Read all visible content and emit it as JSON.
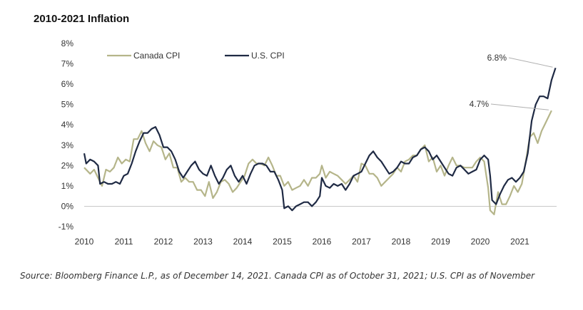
{
  "title": "2010-2021 Inflation",
  "source": "Source: Bloomberg Finance L.P., as of December 14, 2021. Canada CPI as of October 31, 2021; U.S. CPI as of November",
  "chart_data": {
    "type": "line",
    "title": "2010-2021 Inflation",
    "xlabel": "",
    "ylabel": "",
    "xlim": [
      2010,
      2022
    ],
    "ylim": [
      -1,
      8
    ],
    "y_ticks": [
      "-1%",
      "0%",
      "1%",
      "2%",
      "3%",
      "4%",
      "5%",
      "6%",
      "7%",
      "8%"
    ],
    "x_ticks": [
      "2010",
      "2011",
      "2012",
      "2013",
      "2014",
      "2015",
      "2016",
      "2017",
      "2018",
      "2019",
      "2020",
      "2021"
    ],
    "legend": "top-left",
    "grid": false,
    "annotations": [
      {
        "series": "U.S. CPI",
        "text": "6.8%"
      },
      {
        "series": "Canada CPI",
        "text": "4.7%"
      }
    ],
    "series": [
      {
        "name": "Canada CPI",
        "color": "#b5b58a",
        "points": [
          [
            2010.0,
            1.9
          ],
          [
            2010.15,
            1.6
          ],
          [
            2010.25,
            1.8
          ],
          [
            2010.35,
            1.4
          ],
          [
            2010.45,
            1.0
          ],
          [
            2010.55,
            1.8
          ],
          [
            2010.65,
            1.7
          ],
          [
            2010.75,
            1.9
          ],
          [
            2010.85,
            2.4
          ],
          [
            2010.95,
            2.1
          ],
          [
            2011.05,
            2.3
          ],
          [
            2011.15,
            2.2
          ],
          [
            2011.25,
            3.3
          ],
          [
            2011.35,
            3.3
          ],
          [
            2011.45,
            3.7
          ],
          [
            2011.55,
            3.1
          ],
          [
            2011.65,
            2.7
          ],
          [
            2011.75,
            3.2
          ],
          [
            2011.85,
            3.0
          ],
          [
            2011.95,
            2.9
          ],
          [
            2012.05,
            2.3
          ],
          [
            2012.15,
            2.6
          ],
          [
            2012.25,
            1.9
          ],
          [
            2012.35,
            1.9
          ],
          [
            2012.45,
            1.2
          ],
          [
            2012.55,
            1.4
          ],
          [
            2012.65,
            1.2
          ],
          [
            2012.75,
            1.2
          ],
          [
            2012.85,
            0.8
          ],
          [
            2012.95,
            0.8
          ],
          [
            2013.05,
            0.5
          ],
          [
            2013.15,
            1.2
          ],
          [
            2013.25,
            0.4
          ],
          [
            2013.35,
            0.7
          ],
          [
            2013.45,
            1.2
          ],
          [
            2013.55,
            1.3
          ],
          [
            2013.65,
            1.1
          ],
          [
            2013.75,
            0.7
          ],
          [
            2013.85,
            0.9
          ],
          [
            2013.95,
            1.2
          ],
          [
            2014.05,
            1.5
          ],
          [
            2014.15,
            2.1
          ],
          [
            2014.25,
            2.3
          ],
          [
            2014.35,
            2.1
          ],
          [
            2014.45,
            2.1
          ],
          [
            2014.55,
            2.0
          ],
          [
            2014.65,
            2.4
          ],
          [
            2014.75,
            2.0
          ],
          [
            2014.85,
            1.5
          ],
          [
            2014.95,
            1.5
          ],
          [
            2015.05,
            1.0
          ],
          [
            2015.15,
            1.2
          ],
          [
            2015.25,
            0.8
          ],
          [
            2015.35,
            0.9
          ],
          [
            2015.45,
            1.0
          ],
          [
            2015.55,
            1.3
          ],
          [
            2015.65,
            1.0
          ],
          [
            2015.75,
            1.4
          ],
          [
            2015.85,
            1.4
          ],
          [
            2015.95,
            1.6
          ],
          [
            2016.0,
            2.0
          ],
          [
            2016.1,
            1.4
          ],
          [
            2016.2,
            1.7
          ],
          [
            2016.3,
            1.6
          ],
          [
            2016.4,
            1.5
          ],
          [
            2016.5,
            1.3
          ],
          [
            2016.6,
            1.1
          ],
          [
            2016.7,
            1.3
          ],
          [
            2016.8,
            1.5
          ],
          [
            2016.9,
            1.2
          ],
          [
            2017.0,
            2.1
          ],
          [
            2017.1,
            2.0
          ],
          [
            2017.2,
            1.6
          ],
          [
            2017.3,
            1.6
          ],
          [
            2017.4,
            1.4
          ],
          [
            2017.5,
            1.0
          ],
          [
            2017.6,
            1.2
          ],
          [
            2017.7,
            1.4
          ],
          [
            2017.8,
            1.6
          ],
          [
            2017.9,
            1.9
          ],
          [
            2018.0,
            1.7
          ],
          [
            2018.1,
            2.2
          ],
          [
            2018.2,
            2.3
          ],
          [
            2018.3,
            2.5
          ],
          [
            2018.4,
            2.5
          ],
          [
            2018.5,
            2.8
          ],
          [
            2018.6,
            3.0
          ],
          [
            2018.7,
            2.2
          ],
          [
            2018.8,
            2.4
          ],
          [
            2018.9,
            1.7
          ],
          [
            2019.0,
            2.0
          ],
          [
            2019.1,
            1.5
          ],
          [
            2019.2,
            2.0
          ],
          [
            2019.3,
            2.4
          ],
          [
            2019.4,
            2.0
          ],
          [
            2019.5,
            2.0
          ],
          [
            2019.6,
            1.9
          ],
          [
            2019.7,
            1.9
          ],
          [
            2019.8,
            1.9
          ],
          [
            2019.9,
            2.2
          ],
          [
            2020.0,
            2.4
          ],
          [
            2020.1,
            2.2
          ],
          [
            2020.2,
            0.9
          ],
          [
            2020.25,
            -0.2
          ],
          [
            2020.35,
            -0.4
          ],
          [
            2020.45,
            0.7
          ],
          [
            2020.55,
            0.1
          ],
          [
            2020.65,
            0.1
          ],
          [
            2020.75,
            0.5
          ],
          [
            2020.85,
            1.0
          ],
          [
            2020.95,
            0.7
          ],
          [
            2021.05,
            1.1
          ],
          [
            2021.15,
            2.2
          ],
          [
            2021.25,
            3.4
          ],
          [
            2021.35,
            3.6
          ],
          [
            2021.45,
            3.1
          ],
          [
            2021.55,
            3.7
          ],
          [
            2021.65,
            4.1
          ],
          [
            2021.8,
            4.7
          ]
        ]
      },
      {
        "name": "U.S. CPI",
        "color": "#1f2a44",
        "points": [
          [
            2010.0,
            2.6
          ],
          [
            2010.05,
            2.1
          ],
          [
            2010.15,
            2.3
          ],
          [
            2010.25,
            2.2
          ],
          [
            2010.35,
            2.0
          ],
          [
            2010.4,
            1.1
          ],
          [
            2010.5,
            1.2
          ],
          [
            2010.6,
            1.1
          ],
          [
            2010.7,
            1.1
          ],
          [
            2010.8,
            1.2
          ],
          [
            2010.9,
            1.1
          ],
          [
            2011.0,
            1.5
          ],
          [
            2011.1,
            1.6
          ],
          [
            2011.2,
            2.1
          ],
          [
            2011.3,
            2.7
          ],
          [
            2011.4,
            3.2
          ],
          [
            2011.5,
            3.6
          ],
          [
            2011.6,
            3.6
          ],
          [
            2011.7,
            3.8
          ],
          [
            2011.8,
            3.9
          ],
          [
            2011.9,
            3.5
          ],
          [
            2012.0,
            2.9
          ],
          [
            2012.1,
            2.9
          ],
          [
            2012.2,
            2.7
          ],
          [
            2012.3,
            2.3
          ],
          [
            2012.4,
            1.7
          ],
          [
            2012.5,
            1.4
          ],
          [
            2012.6,
            1.7
          ],
          [
            2012.7,
            2.0
          ],
          [
            2012.8,
            2.2
          ],
          [
            2012.9,
            1.8
          ],
          [
            2013.0,
            1.6
          ],
          [
            2013.1,
            1.5
          ],
          [
            2013.2,
            2.0
          ],
          [
            2013.3,
            1.5
          ],
          [
            2013.4,
            1.1
          ],
          [
            2013.5,
            1.4
          ],
          [
            2013.6,
            1.8
          ],
          [
            2013.7,
            2.0
          ],
          [
            2013.8,
            1.5
          ],
          [
            2013.9,
            1.2
          ],
          [
            2014.0,
            1.5
          ],
          [
            2014.1,
            1.1
          ],
          [
            2014.2,
            1.6
          ],
          [
            2014.3,
            2.0
          ],
          [
            2014.4,
            2.1
          ],
          [
            2014.5,
            2.1
          ],
          [
            2014.6,
            2.0
          ],
          [
            2014.7,
            1.7
          ],
          [
            2014.8,
            1.7
          ],
          [
            2014.9,
            1.3
          ],
          [
            2015.0,
            0.8
          ],
          [
            2015.05,
            -0.1
          ],
          [
            2015.15,
            0.0
          ],
          [
            2015.25,
            -0.2
          ],
          [
            2015.35,
            0.0
          ],
          [
            2015.45,
            0.1
          ],
          [
            2015.55,
            0.2
          ],
          [
            2015.65,
            0.2
          ],
          [
            2015.75,
            0.0
          ],
          [
            2015.85,
            0.2
          ],
          [
            2015.95,
            0.5
          ],
          [
            2016.0,
            1.4
          ],
          [
            2016.1,
            1.0
          ],
          [
            2016.2,
            0.9
          ],
          [
            2016.3,
            1.1
          ],
          [
            2016.4,
            1.0
          ],
          [
            2016.5,
            1.1
          ],
          [
            2016.6,
            0.8
          ],
          [
            2016.7,
            1.1
          ],
          [
            2016.8,
            1.5
          ],
          [
            2016.9,
            1.6
          ],
          [
            2017.0,
            1.7
          ],
          [
            2017.1,
            2.1
          ],
          [
            2017.2,
            2.5
          ],
          [
            2017.3,
            2.7
          ],
          [
            2017.4,
            2.4
          ],
          [
            2017.5,
            2.2
          ],
          [
            2017.6,
            1.9
          ],
          [
            2017.7,
            1.6
          ],
          [
            2017.8,
            1.7
          ],
          [
            2017.9,
            1.9
          ],
          [
            2018.0,
            2.2
          ],
          [
            2018.1,
            2.1
          ],
          [
            2018.2,
            2.1
          ],
          [
            2018.3,
            2.4
          ],
          [
            2018.4,
            2.5
          ],
          [
            2018.5,
            2.8
          ],
          [
            2018.6,
            2.9
          ],
          [
            2018.7,
            2.7
          ],
          [
            2018.8,
            2.3
          ],
          [
            2018.9,
            2.5
          ],
          [
            2019.0,
            2.2
          ],
          [
            2019.1,
            1.9
          ],
          [
            2019.2,
            1.6
          ],
          [
            2019.3,
            1.5
          ],
          [
            2019.4,
            1.9
          ],
          [
            2019.5,
            2.0
          ],
          [
            2019.6,
            1.8
          ],
          [
            2019.7,
            1.6
          ],
          [
            2019.8,
            1.7
          ],
          [
            2019.9,
            1.8
          ],
          [
            2020.0,
            2.3
          ],
          [
            2020.1,
            2.5
          ],
          [
            2020.2,
            2.3
          ],
          [
            2020.25,
            1.5
          ],
          [
            2020.3,
            0.3
          ],
          [
            2020.4,
            0.1
          ],
          [
            2020.5,
            0.6
          ],
          [
            2020.6,
            1.0
          ],
          [
            2020.7,
            1.3
          ],
          [
            2020.8,
            1.4
          ],
          [
            2020.9,
            1.2
          ],
          [
            2021.0,
            1.4
          ],
          [
            2021.1,
            1.7
          ],
          [
            2021.2,
            2.6
          ],
          [
            2021.3,
            4.2
          ],
          [
            2021.4,
            5.0
          ],
          [
            2021.5,
            5.4
          ],
          [
            2021.6,
            5.4
          ],
          [
            2021.7,
            5.3
          ],
          [
            2021.8,
            6.2
          ],
          [
            2021.9,
            6.8
          ]
        ]
      }
    ]
  }
}
